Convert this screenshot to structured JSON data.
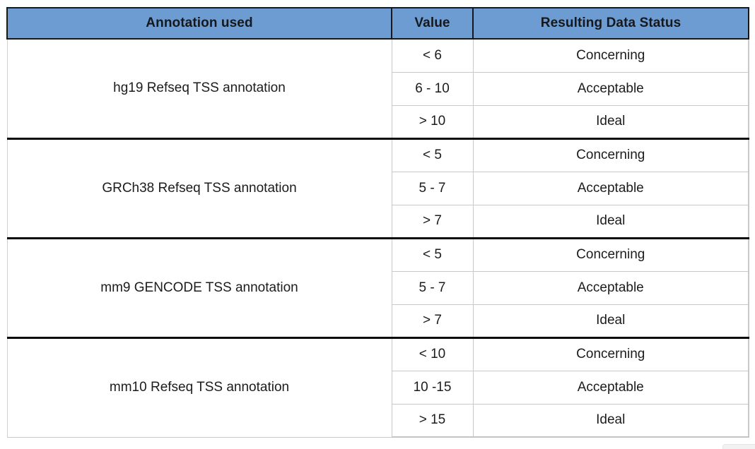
{
  "table": {
    "headers": {
      "annotation": "Annotation used",
      "value": "Value",
      "status": "Resulting Data Status"
    },
    "groups": [
      {
        "annotation": "hg19 Refseq TSS annotation",
        "rows": [
          {
            "value": "< 6",
            "status": "Concerning"
          },
          {
            "value": "6 - 10",
            "status": "Acceptable"
          },
          {
            "value": "> 10",
            "status": "Ideal"
          }
        ]
      },
      {
        "annotation": "GRCh38 Refseq TSS annotation",
        "rows": [
          {
            "value": "< 5",
            "status": "Concerning"
          },
          {
            "value": "5 - 7",
            "status": "Acceptable"
          },
          {
            "value": "> 7",
            "status": "Ideal"
          }
        ]
      },
      {
        "annotation": "mm9 GENCODE TSS annotation",
        "rows": [
          {
            "value": "< 5",
            "status": "Concerning"
          },
          {
            "value": "5 - 7",
            "status": "Acceptable"
          },
          {
            "value": "> 7",
            "status": "Ideal"
          }
        ]
      },
      {
        "annotation": "mm10 Refseq TSS annotation",
        "rows": [
          {
            "value": "< 10",
            "status": "Concerning"
          },
          {
            "value": "10 -15",
            "status": "Acceptable"
          },
          {
            "value": "> 15",
            "status": "Ideal"
          }
        ]
      }
    ],
    "colors": {
      "header_bg": "#6C9CD2",
      "header_border": "#15191e",
      "group_divider": "#0a0a0a",
      "cell_border": "#c9c9c9",
      "text": "#1c1c1c"
    }
  },
  "chart_data": {
    "type": "table",
    "title": "",
    "columns": [
      "Annotation used",
      "Value",
      "Resulting Data Status"
    ],
    "rows": [
      [
        "hg19 Refseq TSS annotation",
        "< 6",
        "Concerning"
      ],
      [
        "hg19 Refseq TSS annotation",
        "6 - 10",
        "Acceptable"
      ],
      [
        "hg19 Refseq TSS annotation",
        "> 10",
        "Ideal"
      ],
      [
        "GRCh38 Refseq TSS annotation",
        "< 5",
        "Concerning"
      ],
      [
        "GRCh38 Refseq TSS annotation",
        "5 - 7",
        "Acceptable"
      ],
      [
        "GRCh38 Refseq TSS annotation",
        "> 7",
        "Ideal"
      ],
      [
        "mm9 GENCODE TSS annotation",
        "< 5",
        "Concerning"
      ],
      [
        "mm9 GENCODE TSS annotation",
        "5 - 7",
        "Acceptable"
      ],
      [
        "mm9 GENCODE TSS annotation",
        "> 7",
        "Ideal"
      ],
      [
        "mm10 Refseq TSS annotation",
        "< 10",
        "Concerning"
      ],
      [
        "mm10 Refseq TSS annotation",
        "10 -15",
        "Acceptable"
      ],
      [
        "mm10 Refseq TSS annotation",
        "> 15",
        "Ideal"
      ]
    ]
  }
}
